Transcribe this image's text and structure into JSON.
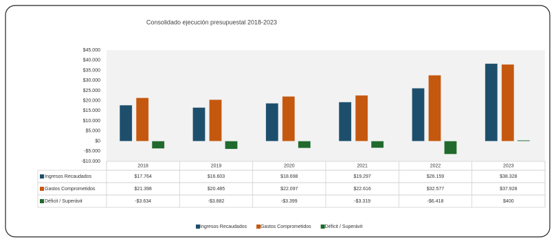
{
  "chart_data": {
    "type": "bar",
    "title": "Consolidado ejecución presupuestal 2018-2023",
    "categories": [
      "2018",
      "2019",
      "2020",
      "2021",
      "2022",
      "2023"
    ],
    "series": [
      {
        "name": "Ingresos Recaudados",
        "color": "#1d4f6c",
        "values": [
          17764,
          16603,
          18698,
          19297,
          26159,
          38328
        ],
        "value_labels": [
          "$17.764",
          "$16.603",
          "$18.698",
          "$19.297",
          "$26.159",
          "$38.328"
        ]
      },
      {
        "name": "Gastos Comprometidos",
        "color": "#c5580f",
        "values": [
          21398,
          20485,
          22097,
          22616,
          32577,
          37928
        ],
        "value_labels": [
          "$21.398",
          "$20.485",
          "$22.097",
          "$22.616",
          "$32.577",
          "$37.928"
        ]
      },
      {
        "name": "Déficit / Superávit",
        "color": "#1f6a2c",
        "values": [
          -3634,
          -3882,
          -3399,
          -3319,
          -6418,
          400
        ],
        "value_labels": [
          "-$3.634",
          "-$3.882",
          "-$3.399",
          "-$3.319",
          "-$6.418",
          "$400"
        ]
      }
    ],
    "ylim": [
      -10000,
      45000
    ],
    "yticks": [
      {
        "value": -10000,
        "label": "-$10.000"
      },
      {
        "value": -5000,
        "label": "-$5.000"
      },
      {
        "value": 0,
        "label": "$0"
      },
      {
        "value": 5000,
        "label": "$5.000"
      },
      {
        "value": 10000,
        "label": "$10.000"
      },
      {
        "value": 15000,
        "label": "$15.000"
      },
      {
        "value": 20000,
        "label": "$20.000"
      },
      {
        "value": 25000,
        "label": "$25.000"
      },
      {
        "value": 30000,
        "label": "$30.000"
      },
      {
        "value": 35000,
        "label": "$35.000"
      },
      {
        "value": 40000,
        "label": "$40.000"
      },
      {
        "value": 45000,
        "label": "$45.000"
      }
    ],
    "grid": false
  }
}
